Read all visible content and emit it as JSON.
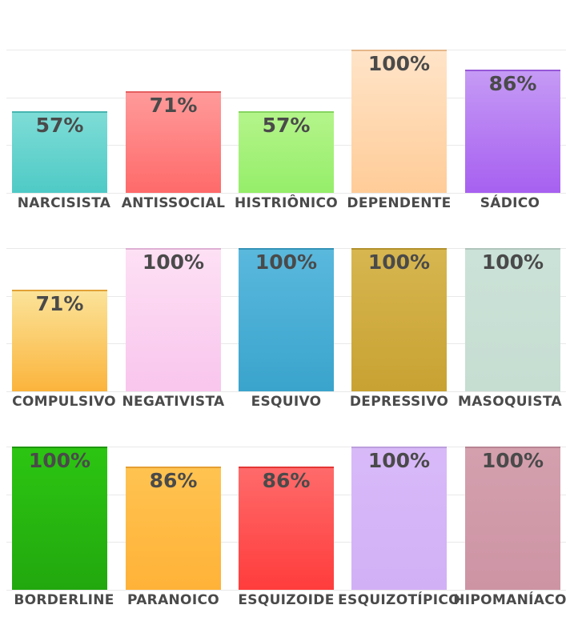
{
  "chart_data": [
    {
      "type": "bar",
      "categories": [
        "NARCISISTA",
        "ANTISSOCIAL",
        "HISTRIÔNICO",
        "DEPENDENTE",
        "SÁDICO"
      ],
      "values": [
        57,
        71,
        57,
        100,
        86
      ],
      "value_labels": [
        "57%",
        "71%",
        "57%",
        "100%",
        "86%"
      ],
      "colors": [
        [
          "#7edcd6",
          "#4fcac6"
        ],
        [
          "#ff9a9a",
          "#ff6a6a"
        ],
        [
          "#b4f48a",
          "#95ee6a"
        ],
        [
          "#ffe4c8",
          "#ffcc98"
        ],
        [
          "#c59af5",
          "#a760f0"
        ]
      ],
      "ylim": [
        0,
        100
      ],
      "grid": true
    },
    {
      "type": "bar",
      "categories": [
        "COMPULSIVO",
        "NEGATIVISTA",
        "ESQUIVO",
        "DEPRESSIVO",
        "MASOQUISTA"
      ],
      "values": [
        71,
        100,
        100,
        100,
        100
      ],
      "value_labels": [
        "71%",
        "100%",
        "100%",
        "100%",
        "100%"
      ],
      "colors": [
        [
          "#fbe399",
          "#fbb43c"
        ],
        [
          "#fde0f4",
          "#f9c5ed"
        ],
        [
          "#5ab8dd",
          "#3aa4cc"
        ],
        [
          "#d7b650",
          "#c8a232"
        ],
        [
          "#cbe2d8",
          "#c6ddd2"
        ]
      ],
      "ylim": [
        0,
        100
      ],
      "grid": true
    },
    {
      "type": "bar",
      "categories": [
        "BORDERLINE",
        "PARANOICO",
        "ESQUIZOIDE",
        "ESQUIZOTÍPICO",
        "HIPOMANÍACO"
      ],
      "values": [
        100,
        86,
        86,
        100,
        100
      ],
      "value_labels": [
        "100%",
        "86%",
        "86%",
        "100%",
        "100%"
      ],
      "colors": [
        [
          "#2cc512",
          "#22a80e"
        ],
        [
          "#ffc350",
          "#ffb238"
        ],
        [
          "#ff6a6a",
          "#ff3c3c"
        ],
        [
          "#d8b9f8",
          "#d2b0f6"
        ],
        [
          "#d4a0ae",
          "#cd94a4"
        ]
      ],
      "ylim": [
        0,
        100
      ],
      "grid": true
    }
  ]
}
